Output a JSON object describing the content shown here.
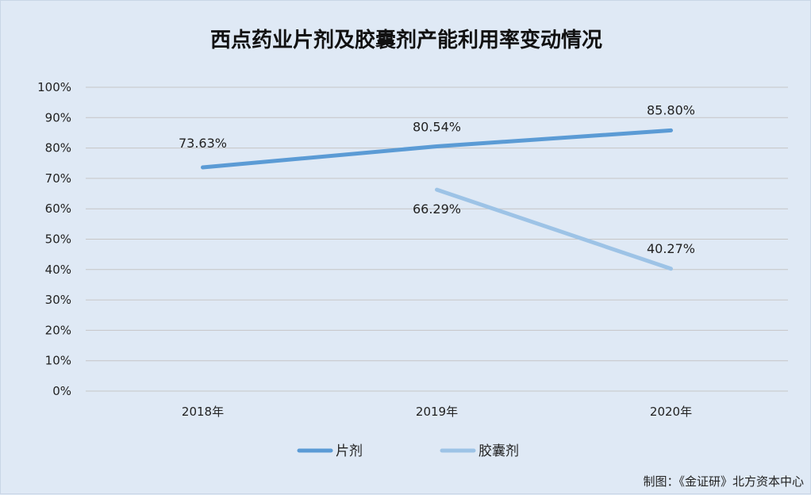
{
  "chart_data": {
    "type": "line",
    "title": "西点药业片剂及胶囊剂产能利用率变动情况",
    "categories": [
      "2018年",
      "2019年",
      "2020年"
    ],
    "ylim": [
      0,
      100
    ],
    "yticks": [
      "0%",
      "10%",
      "20%",
      "30%",
      "40%",
      "50%",
      "60%",
      "70%",
      "80%",
      "90%",
      "100%"
    ],
    "grid": true,
    "legend": "bottom",
    "series": [
      {
        "name": "片剂",
        "values": [
          73.63,
          80.54,
          85.8
        ],
        "labels": [
          "73.63%",
          "80.54%",
          "85.80%"
        ],
        "color": "#5b9bd5"
      },
      {
        "name": "胶囊剂",
        "values": [
          null,
          66.29,
          40.27
        ],
        "labels": [
          "",
          "66.29%",
          "40.27%"
        ],
        "color": "#9dc3e6"
      }
    ]
  },
  "credit": "制图：《金证研》北方资本中心"
}
